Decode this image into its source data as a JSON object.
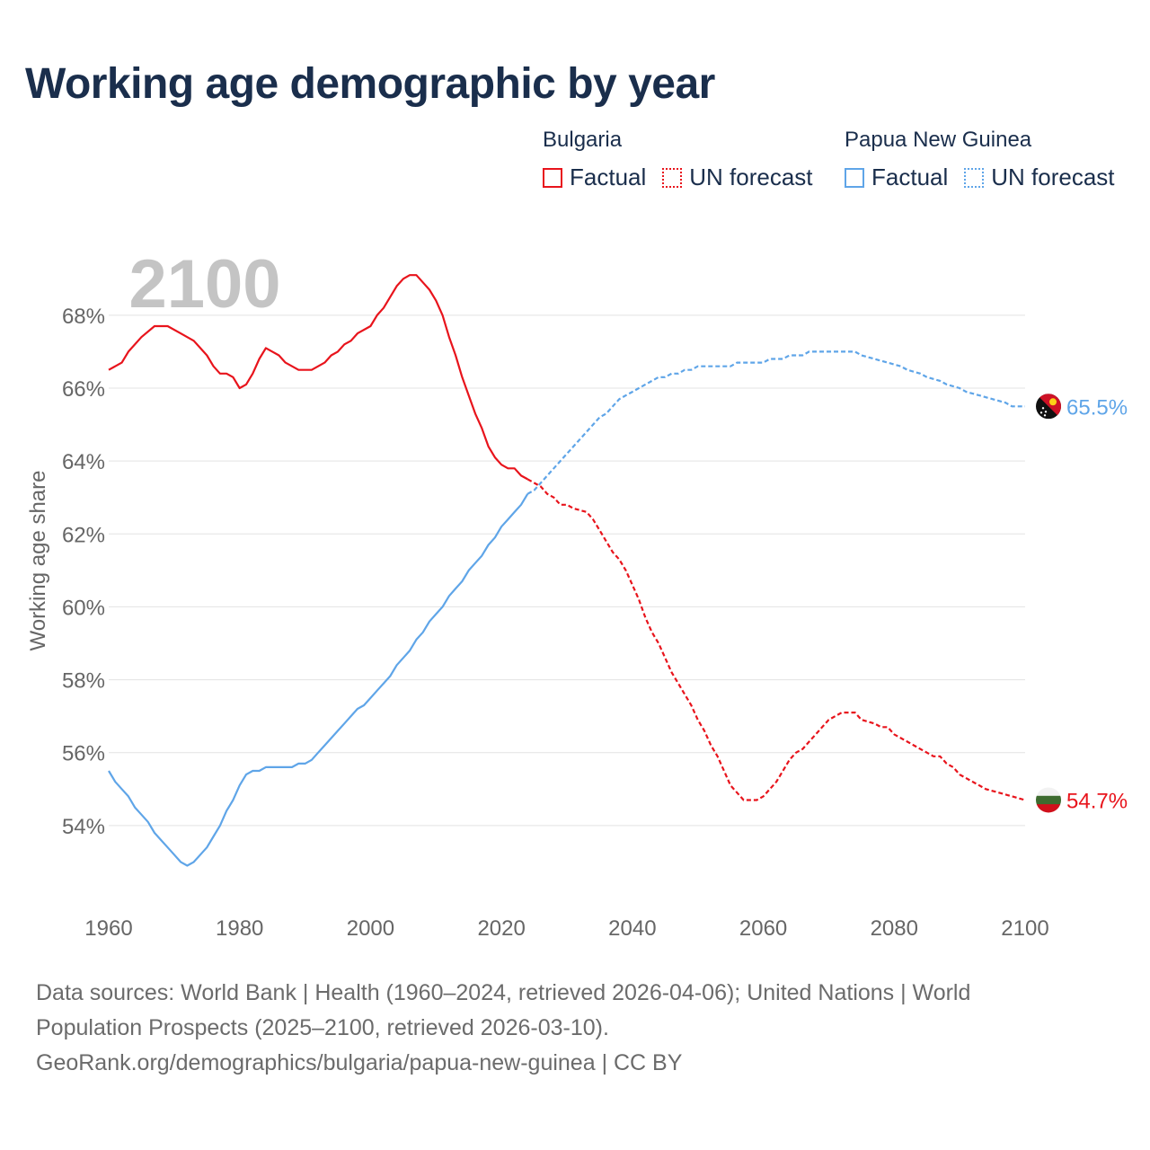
{
  "title": "Working age demographic by year",
  "legend": {
    "groups": [
      {
        "country": "Bulgaria",
        "factual_label": "Factual",
        "forecast_label": "UN forecast",
        "color": "#e8141c"
      },
      {
        "country": "Papua New Guinea",
        "factual_label": "Factual",
        "forecast_label": "UN forecast",
        "color": "#5fa5e8"
      }
    ]
  },
  "footer": {
    "line1": "Data sources: World Bank | Health (1960–2024, retrieved 2026-04-06); United Nations | World",
    "line2": "Population Prospects (2025–2100, retrieved 2026-03-10).",
    "line3": "GeoRank.org/demographics/bulgaria/papua-new-guinea | CC BY"
  },
  "chart_data": {
    "type": "line",
    "year_label": "2100",
    "ylabel": "Working age share",
    "xlim": [
      1960,
      2100
    ],
    "ylim": [
      52,
      69.5
    ],
    "x_ticks": [
      1960,
      1980,
      2000,
      2020,
      2040,
      2060,
      2080,
      2100
    ],
    "x_tick_labels": [
      "1960",
      "1980",
      "2000",
      "2020",
      "2040",
      "2060",
      "2080",
      "2100"
    ],
    "y_ticks": [
      54,
      56,
      58,
      60,
      62,
      64,
      66,
      68
    ],
    "y_tick_labels": [
      "54%",
      "56%",
      "58%",
      "60%",
      "62%",
      "64%",
      "66%",
      "68%"
    ],
    "factual_end_year": 2024,
    "series": [
      {
        "name": "Bulgaria",
        "color": "#e8141c",
        "end_label": "54.7%",
        "marker_icon": "bulgaria-flag-icon",
        "points": [
          [
            1960,
            66.5
          ],
          [
            1962,
            66.7
          ],
          [
            1963,
            67.0
          ],
          [
            1965,
            67.4
          ],
          [
            1967,
            67.7
          ],
          [
            1968,
            67.7
          ],
          [
            1969,
            67.7
          ],
          [
            1971,
            67.5
          ],
          [
            1973,
            67.3
          ],
          [
            1975,
            66.9
          ],
          [
            1976,
            66.6
          ],
          [
            1977,
            66.4
          ],
          [
            1978,
            66.4
          ],
          [
            1979,
            66.3
          ],
          [
            1980,
            66.0
          ],
          [
            1981,
            66.1
          ],
          [
            1982,
            66.4
          ],
          [
            1983,
            66.8
          ],
          [
            1984,
            67.1
          ],
          [
            1985,
            67.0
          ],
          [
            1986,
            66.9
          ],
          [
            1987,
            66.7
          ],
          [
            1989,
            66.5
          ],
          [
            1991,
            66.5
          ],
          [
            1993,
            66.7
          ],
          [
            1994,
            66.9
          ],
          [
            1995,
            67.0
          ],
          [
            1996,
            67.2
          ],
          [
            1997,
            67.3
          ],
          [
            1998,
            67.5
          ],
          [
            2000,
            67.7
          ],
          [
            2001,
            68.0
          ],
          [
            2002,
            68.2
          ],
          [
            2003,
            68.5
          ],
          [
            2004,
            68.8
          ],
          [
            2005,
            69.0
          ],
          [
            2006,
            69.1
          ],
          [
            2007,
            69.1
          ],
          [
            2008,
            68.9
          ],
          [
            2009,
            68.7
          ],
          [
            2010,
            68.4
          ],
          [
            2011,
            68.0
          ],
          [
            2012,
            67.4
          ],
          [
            2013,
            66.9
          ],
          [
            2014,
            66.3
          ],
          [
            2015,
            65.8
          ],
          [
            2016,
            65.3
          ],
          [
            2017,
            64.9
          ],
          [
            2018,
            64.4
          ],
          [
            2019,
            64.1
          ],
          [
            2020,
            63.9
          ],
          [
            2021,
            63.8
          ],
          [
            2022,
            63.8
          ],
          [
            2023,
            63.6
          ],
          [
            2024,
            63.5
          ],
          [
            2025,
            63.4
          ],
          [
            2026,
            63.3
          ],
          [
            2027,
            63.1
          ],
          [
            2028,
            63.0
          ],
          [
            2029,
            62.8
          ],
          [
            2030,
            62.8
          ],
          [
            2031,
            62.7
          ],
          [
            2033,
            62.6
          ],
          [
            2034,
            62.4
          ],
          [
            2035,
            62.1
          ],
          [
            2036,
            61.8
          ],
          [
            2037,
            61.5
          ],
          [
            2038,
            61.3
          ],
          [
            2039,
            61.0
          ],
          [
            2040,
            60.6
          ],
          [
            2041,
            60.2
          ],
          [
            2042,
            59.7
          ],
          [
            2043,
            59.3
          ],
          [
            2044,
            59.0
          ],
          [
            2045,
            58.6
          ],
          [
            2046,
            58.2
          ],
          [
            2047,
            57.9
          ],
          [
            2048,
            57.6
          ],
          [
            2049,
            57.3
          ],
          [
            2050,
            56.9
          ],
          [
            2051,
            56.6
          ],
          [
            2052,
            56.2
          ],
          [
            2053,
            55.9
          ],
          [
            2054,
            55.5
          ],
          [
            2055,
            55.1
          ],
          [
            2056,
            54.9
          ],
          [
            2057,
            54.7
          ],
          [
            2059,
            54.7
          ],
          [
            2060,
            54.8
          ],
          [
            2061,
            55.0
          ],
          [
            2062,
            55.2
          ],
          [
            2063,
            55.5
          ],
          [
            2064,
            55.8
          ],
          [
            2065,
            56.0
          ],
          [
            2066,
            56.1
          ],
          [
            2067,
            56.3
          ],
          [
            2068,
            56.5
          ],
          [
            2069,
            56.7
          ],
          [
            2070,
            56.9
          ],
          [
            2071,
            57.0
          ],
          [
            2072,
            57.1
          ],
          [
            2074,
            57.1
          ],
          [
            2075,
            56.9
          ],
          [
            2077,
            56.8
          ],
          [
            2078,
            56.7
          ],
          [
            2079,
            56.7
          ],
          [
            2080,
            56.5
          ],
          [
            2082,
            56.3
          ],
          [
            2084,
            56.1
          ],
          [
            2085,
            56.0
          ],
          [
            2086,
            55.9
          ],
          [
            2087,
            55.9
          ],
          [
            2088,
            55.7
          ],
          [
            2089,
            55.6
          ],
          [
            2090,
            55.4
          ],
          [
            2092,
            55.2
          ],
          [
            2093,
            55.1
          ],
          [
            2094,
            55.0
          ],
          [
            2096,
            54.9
          ],
          [
            2098,
            54.8
          ],
          [
            2100,
            54.7
          ]
        ]
      },
      {
        "name": "Papua New Guinea",
        "color": "#5fa5e8",
        "end_label": "65.5%",
        "marker_icon": "papua-new-guinea-flag-icon",
        "points": [
          [
            1960,
            55.5
          ],
          [
            1961,
            55.2
          ],
          [
            1962,
            55.0
          ],
          [
            1963,
            54.8
          ],
          [
            1964,
            54.5
          ],
          [
            1965,
            54.3
          ],
          [
            1966,
            54.1
          ],
          [
            1967,
            53.8
          ],
          [
            1968,
            53.6
          ],
          [
            1969,
            53.4
          ],
          [
            1970,
            53.2
          ],
          [
            1971,
            53.0
          ],
          [
            1972,
            52.9
          ],
          [
            1973,
            53.0
          ],
          [
            1974,
            53.2
          ],
          [
            1975,
            53.4
          ],
          [
            1976,
            53.7
          ],
          [
            1977,
            54.0
          ],
          [
            1978,
            54.4
          ],
          [
            1979,
            54.7
          ],
          [
            1980,
            55.1
          ],
          [
            1981,
            55.4
          ],
          [
            1982,
            55.5
          ],
          [
            1983,
            55.5
          ],
          [
            1984,
            55.6
          ],
          [
            1988,
            55.6
          ],
          [
            1989,
            55.7
          ],
          [
            1990,
            55.7
          ],
          [
            1991,
            55.8
          ],
          [
            1992,
            56.0
          ],
          [
            1993,
            56.2
          ],
          [
            1994,
            56.4
          ],
          [
            1995,
            56.6
          ],
          [
            1996,
            56.8
          ],
          [
            1997,
            57.0
          ],
          [
            1998,
            57.2
          ],
          [
            1999,
            57.3
          ],
          [
            2000,
            57.5
          ],
          [
            2001,
            57.7
          ],
          [
            2002,
            57.9
          ],
          [
            2003,
            58.1
          ],
          [
            2004,
            58.4
          ],
          [
            2005,
            58.6
          ],
          [
            2006,
            58.8
          ],
          [
            2007,
            59.1
          ],
          [
            2008,
            59.3
          ],
          [
            2009,
            59.6
          ],
          [
            2010,
            59.8
          ],
          [
            2011,
            60.0
          ],
          [
            2012,
            60.3
          ],
          [
            2013,
            60.5
          ],
          [
            2014,
            60.7
          ],
          [
            2015,
            61.0
          ],
          [
            2016,
            61.2
          ],
          [
            2017,
            61.4
          ],
          [
            2018,
            61.7
          ],
          [
            2019,
            61.9
          ],
          [
            2020,
            62.2
          ],
          [
            2021,
            62.4
          ],
          [
            2022,
            62.6
          ],
          [
            2023,
            62.8
          ],
          [
            2024,
            63.1
          ],
          [
            2025,
            63.2
          ],
          [
            2026,
            63.4
          ],
          [
            2027,
            63.6
          ],
          [
            2028,
            63.8
          ],
          [
            2029,
            64.0
          ],
          [
            2030,
            64.2
          ],
          [
            2031,
            64.4
          ],
          [
            2032,
            64.6
          ],
          [
            2033,
            64.8
          ],
          [
            2034,
            65.0
          ],
          [
            2035,
            65.2
          ],
          [
            2036,
            65.3
          ],
          [
            2037,
            65.5
          ],
          [
            2038,
            65.7
          ],
          [
            2039,
            65.8
          ],
          [
            2040,
            65.9
          ],
          [
            2041,
            66.0
          ],
          [
            2042,
            66.1
          ],
          [
            2043,
            66.2
          ],
          [
            2044,
            66.3
          ],
          [
            2045,
            66.3
          ],
          [
            2046,
            66.4
          ],
          [
            2047,
            66.4
          ],
          [
            2048,
            66.5
          ],
          [
            2049,
            66.5
          ],
          [
            2050,
            66.6
          ],
          [
            2055,
            66.6
          ],
          [
            2056,
            66.7
          ],
          [
            2060,
            66.7
          ],
          [
            2061,
            66.8
          ],
          [
            2063,
            66.8
          ],
          [
            2064,
            66.9
          ],
          [
            2066,
            66.9
          ],
          [
            2067,
            67.0
          ],
          [
            2074,
            67.0
          ],
          [
            2075,
            66.9
          ],
          [
            2077,
            66.8
          ],
          [
            2079,
            66.7
          ],
          [
            2081,
            66.6
          ],
          [
            2082,
            66.5
          ],
          [
            2084,
            66.4
          ],
          [
            2085,
            66.3
          ],
          [
            2087,
            66.2
          ],
          [
            2088,
            66.1
          ],
          [
            2090,
            66.0
          ],
          [
            2091,
            65.9
          ],
          [
            2093,
            65.8
          ],
          [
            2095,
            65.7
          ],
          [
            2097,
            65.6
          ],
          [
            2098,
            65.5
          ],
          [
            2100,
            65.5
          ]
        ]
      }
    ]
  }
}
